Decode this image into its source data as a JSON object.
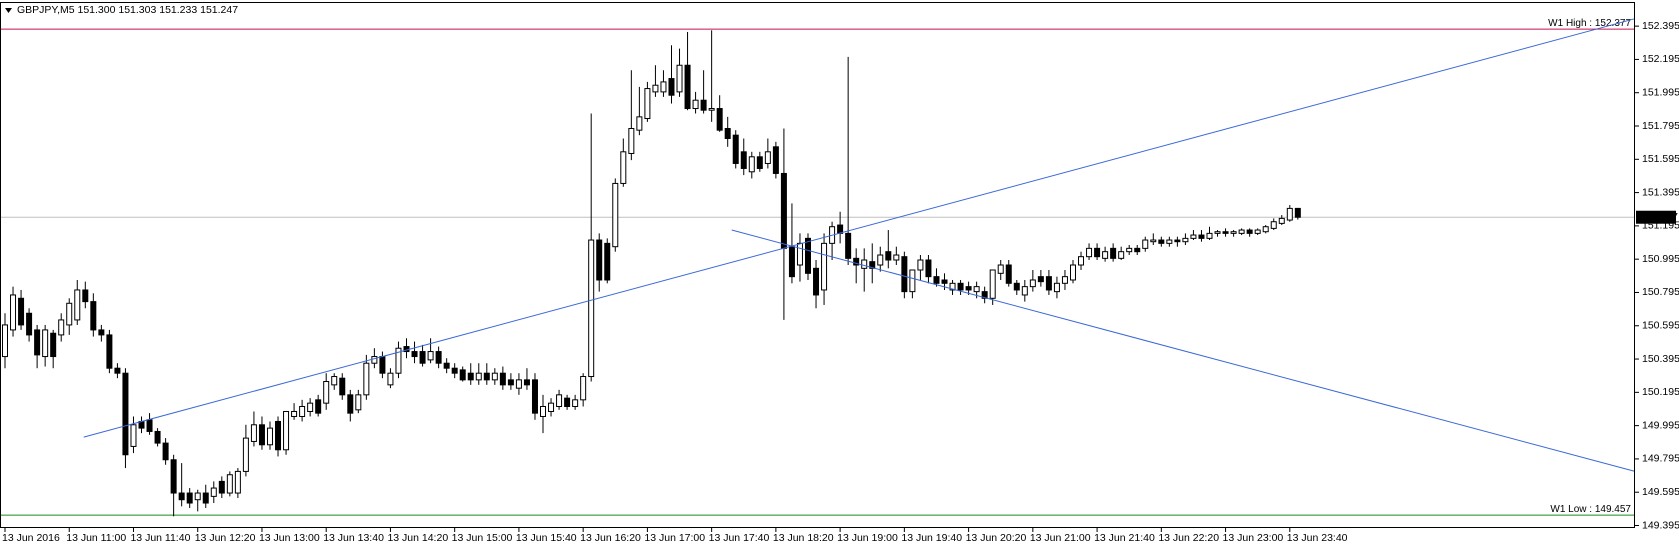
{
  "chart_data": {
    "type": "candlestick",
    "title": "GBPJPY,M5  151.300 151.303 151.233 151.247",
    "bull_color": "#ffffff",
    "bear_color": "#000000",
    "candles": [
      [
        150.41,
        150.67,
        150.34,
        150.6
      ],
      [
        150.57,
        150.83,
        150.53,
        150.78
      ],
      [
        150.76,
        150.81,
        150.57,
        150.6
      ],
      [
        150.67,
        150.7,
        150.5,
        150.54
      ],
      [
        150.57,
        150.6,
        150.34,
        150.42
      ],
      [
        150.41,
        150.6,
        150.35,
        150.57
      ],
      [
        150.55,
        150.57,
        150.34,
        150.41
      ],
      [
        150.54,
        150.67,
        150.5,
        150.63
      ],
      [
        150.6,
        150.76,
        150.54,
        150.73
      ],
      [
        150.63,
        150.87,
        150.6,
        150.81
      ],
      [
        150.81,
        150.86,
        150.7,
        150.74
      ],
      [
        150.74,
        150.79,
        150.53,
        150.57
      ],
      [
        150.57,
        150.6,
        150.5,
        150.54
      ],
      [
        150.54,
        150.57,
        150.31,
        150.34
      ],
      [
        150.34,
        150.37,
        150.28,
        150.31
      ],
      [
        150.31,
        150.34,
        149.74,
        149.82
      ],
      [
        149.87,
        150.05,
        149.83,
        150.0
      ],
      [
        150.02,
        150.05,
        149.95,
        149.98
      ],
      [
        150.03,
        150.07,
        149.94,
        149.96
      ],
      [
        149.96,
        149.98,
        149.87,
        149.89
      ],
      [
        149.89,
        149.92,
        149.76,
        149.79
      ],
      [
        149.79,
        149.82,
        149.45,
        149.59
      ],
      [
        149.59,
        149.77,
        149.51,
        149.55
      ],
      [
        149.59,
        149.62,
        149.5,
        149.53
      ],
      [
        149.55,
        149.61,
        149.48,
        149.59
      ],
      [
        149.59,
        149.64,
        149.5,
        149.53
      ],
      [
        149.57,
        149.66,
        149.53,
        149.62
      ],
      [
        149.66,
        149.69,
        149.56,
        149.59
      ],
      [
        149.59,
        149.72,
        149.57,
        149.7
      ],
      [
        149.59,
        149.74,
        149.56,
        149.72
      ],
      [
        149.72,
        150.0,
        149.69,
        149.92
      ],
      [
        149.9,
        150.08,
        149.87,
        150.0
      ],
      [
        150.0,
        150.05,
        149.85,
        149.88
      ],
      [
        149.88,
        150.02,
        149.85,
        149.98
      ],
      [
        150.02,
        150.05,
        149.81,
        149.85
      ],
      [
        149.85,
        150.08,
        149.82,
        150.08
      ],
      [
        150.05,
        150.13,
        150.03,
        150.08
      ],
      [
        150.05,
        150.15,
        150.02,
        150.11
      ],
      [
        150.08,
        150.16,
        150.05,
        150.13
      ],
      [
        150.15,
        150.18,
        150.05,
        150.07
      ],
      [
        150.13,
        150.31,
        150.09,
        150.26
      ],
      [
        150.24,
        150.31,
        150.21,
        150.29
      ],
      [
        150.28,
        150.31,
        150.15,
        150.18
      ],
      [
        150.18,
        150.21,
        150.02,
        150.07
      ],
      [
        150.09,
        150.21,
        150.07,
        150.18
      ],
      [
        150.18,
        150.42,
        150.15,
        150.37
      ],
      [
        150.37,
        150.46,
        150.34,
        150.41
      ],
      [
        150.41,
        150.44,
        150.28,
        150.31
      ],
      [
        150.24,
        150.34,
        150.22,
        150.31
      ],
      [
        150.31,
        150.5,
        150.28,
        150.46
      ],
      [
        150.47,
        150.52,
        150.4,
        150.44
      ],
      [
        150.44,
        150.5,
        150.37,
        150.41
      ],
      [
        150.44,
        150.48,
        150.35,
        150.37
      ],
      [
        150.39,
        150.52,
        150.37,
        150.44
      ],
      [
        150.44,
        150.47,
        150.34,
        150.37
      ],
      [
        150.37,
        150.4,
        150.31,
        150.34
      ],
      [
        150.34,
        150.37,
        150.28,
        150.31
      ],
      [
        150.33,
        150.35,
        150.26,
        150.27
      ],
      [
        150.31,
        150.37,
        150.24,
        150.27
      ],
      [
        150.27,
        150.37,
        150.24,
        150.31
      ],
      [
        150.31,
        150.37,
        150.24,
        150.27
      ],
      [
        150.27,
        150.34,
        150.24,
        150.31
      ],
      [
        150.31,
        150.35,
        150.21,
        150.24
      ],
      [
        150.27,
        150.31,
        150.21,
        150.24
      ],
      [
        150.22,
        150.31,
        150.18,
        150.27
      ],
      [
        150.27,
        150.34,
        150.21,
        150.24
      ],
      [
        150.27,
        150.31,
        150.03,
        150.07
      ],
      [
        150.05,
        150.18,
        149.95,
        150.11
      ],
      [
        150.08,
        150.16,
        150.05,
        150.13
      ],
      [
        150.11,
        150.21,
        150.09,
        150.18
      ],
      [
        150.16,
        150.18,
        150.09,
        150.11
      ],
      [
        150.11,
        150.18,
        150.09,
        150.15
      ],
      [
        150.15,
        150.31,
        150.11,
        150.29
      ],
      [
        150.29,
        151.87,
        150.26,
        151.11
      ],
      [
        151.11,
        151.15,
        150.8,
        150.87
      ],
      [
        151.09,
        151.12,
        150.85,
        150.87
      ],
      [
        151.07,
        151.48,
        151.04,
        151.45
      ],
      [
        151.45,
        151.72,
        151.43,
        151.64
      ],
      [
        151.63,
        152.13,
        151.59,
        151.78
      ],
      [
        151.77,
        152.03,
        151.74,
        151.85
      ],
      [
        151.84,
        152.06,
        151.82,
        152.02
      ],
      [
        152.0,
        152.16,
        151.97,
        152.04
      ],
      [
        152.0,
        152.13,
        151.97,
        152.06
      ],
      [
        152.08,
        152.28,
        151.93,
        151.98
      ],
      [
        152.0,
        152.26,
        151.97,
        152.16
      ],
      [
        152.16,
        152.36,
        151.89,
        151.9
      ],
      [
        151.9,
        152.0,
        151.87,
        151.95
      ],
      [
        151.95,
        152.13,
        151.87,
        151.89
      ],
      [
        151.89,
        152.37,
        151.82,
        151.9
      ],
      [
        151.9,
        151.98,
        151.76,
        151.77
      ],
      [
        151.78,
        151.85,
        151.67,
        151.72
      ],
      [
        151.74,
        151.77,
        151.54,
        151.57
      ],
      [
        151.64,
        151.72,
        151.5,
        151.54
      ],
      [
        151.52,
        151.64,
        151.48,
        151.61
      ],
      [
        151.61,
        151.64,
        151.52,
        151.54
      ],
      [
        151.57,
        151.72,
        151.54,
        151.64
      ],
      [
        151.67,
        151.7,
        151.48,
        151.51
      ],
      [
        151.51,
        151.78,
        150.63,
        151.06
      ],
      [
        151.07,
        151.33,
        150.85,
        150.89
      ],
      [
        150.96,
        151.15,
        150.86,
        151.09
      ],
      [
        151.12,
        151.15,
        150.87,
        150.91
      ],
      [
        150.94,
        150.99,
        150.7,
        150.78
      ],
      [
        150.81,
        151.15,
        150.72,
        151.09
      ],
      [
        151.09,
        151.22,
        150.99,
        151.19
      ],
      [
        151.2,
        151.28,
        151.09,
        151.15
      ],
      [
        151.15,
        152.21,
        150.96,
        151.0
      ],
      [
        151.0,
        151.06,
        150.85,
        150.96
      ],
      [
        150.94,
        151.06,
        150.8,
        150.99
      ],
      [
        150.98,
        151.09,
        150.85,
        150.94
      ],
      [
        150.96,
        151.07,
        150.92,
        151.02
      ],
      [
        151.04,
        151.17,
        150.94,
        150.99
      ],
      [
        150.99,
        151.07,
        150.96,
        151.02
      ],
      [
        151.01,
        151.04,
        150.76,
        150.8
      ],
      [
        150.8,
        150.93,
        150.76,
        150.93
      ],
      [
        150.93,
        151.02,
        150.87,
        150.99
      ],
      [
        150.99,
        151.02,
        150.85,
        150.89
      ],
      [
        150.89,
        150.94,
        150.83,
        150.85
      ],
      [
        150.87,
        150.91,
        150.81,
        150.85
      ],
      [
        150.81,
        150.87,
        150.78,
        150.85
      ],
      [
        150.85,
        150.87,
        150.78,
        150.81
      ],
      [
        150.83,
        150.86,
        150.78,
        150.81
      ],
      [
        150.8,
        150.86,
        150.76,
        150.83
      ],
      [
        150.8,
        150.83,
        150.73,
        150.76
      ],
      [
        150.76,
        150.93,
        150.72,
        150.93
      ],
      [
        150.91,
        150.99,
        150.87,
        150.96
      ],
      [
        150.96,
        150.99,
        150.83,
        150.85
      ],
      [
        150.85,
        150.87,
        150.78,
        150.81
      ],
      [
        150.78,
        150.87,
        150.74,
        150.83
      ],
      [
        150.83,
        150.93,
        150.8,
        150.87
      ],
      [
        150.89,
        150.93,
        150.83,
        150.86
      ],
      [
        150.89,
        150.93,
        150.78,
        150.81
      ],
      [
        150.8,
        150.89,
        150.76,
        150.85
      ],
      [
        150.85,
        150.93,
        150.81,
        150.89
      ],
      [
        150.87,
        150.99,
        150.85,
        150.96
      ],
      [
        150.96,
        151.04,
        150.93,
        151.01
      ],
      [
        151.01,
        151.09,
        150.99,
        151.06
      ],
      [
        151.06,
        151.09,
        150.99,
        151.01
      ],
      [
        151.0,
        151.07,
        150.98,
        151.04
      ],
      [
        151.06,
        151.09,
        150.98,
        151.0
      ],
      [
        151.0,
        151.07,
        150.99,
        151.04
      ],
      [
        151.04,
        151.08,
        151.02,
        151.06
      ],
      [
        151.06,
        151.08,
        151.02,
        151.04
      ],
      [
        151.06,
        151.13,
        151.04,
        151.11
      ],
      [
        151.1,
        151.15,
        151.08,
        151.11
      ],
      [
        151.11,
        151.13,
        151.07,
        151.09
      ],
      [
        151.09,
        151.13,
        151.07,
        151.11
      ],
      [
        151.11,
        151.13,
        151.07,
        151.1
      ],
      [
        151.1,
        151.15,
        151.08,
        151.12
      ],
      [
        151.12,
        151.17,
        151.11,
        151.14
      ],
      [
        151.14,
        151.17,
        151.1,
        151.12
      ],
      [
        151.12,
        151.19,
        151.11,
        151.15
      ],
      [
        151.15,
        151.17,
        151.13,
        151.16
      ],
      [
        151.16,
        151.18,
        151.13,
        151.15
      ],
      [
        151.15,
        151.17,
        151.13,
        151.16
      ],
      [
        151.15,
        151.18,
        151.14,
        151.17
      ],
      [
        151.17,
        151.18,
        151.13,
        151.15
      ],
      [
        151.15,
        151.18,
        151.14,
        151.17
      ],
      [
        151.16,
        151.2,
        151.15,
        151.19
      ],
      [
        151.18,
        151.24,
        151.17,
        151.22
      ],
      [
        151.21,
        151.26,
        151.2,
        151.24
      ],
      [
        151.23,
        151.32,
        151.22,
        151.3
      ],
      [
        151.3,
        151.303,
        151.233,
        151.247
      ]
    ],
    "xticks": [
      {
        "value": 0,
        "label": "13 Jun 2016"
      },
      {
        "value": 8,
        "label": "13 Jun 11:00"
      },
      {
        "value": 16,
        "label": "13 Jun 11:40"
      },
      {
        "value": 24,
        "label": "13 Jun 12:20"
      },
      {
        "value": 32,
        "label": "13 Jun 13:00"
      },
      {
        "value": 40,
        "label": "13 Jun 13:40"
      },
      {
        "value": 48,
        "label": "13 Jun 14:20"
      },
      {
        "value": 56,
        "label": "13 Jun 15:00"
      },
      {
        "value": 64,
        "label": "13 Jun 15:40"
      },
      {
        "value": 72,
        "label": "13 Jun 16:20"
      },
      {
        "value": 80,
        "label": "13 Jun 17:00"
      },
      {
        "value": 88,
        "label": "13 Jun 17:40"
      },
      {
        "value": 96,
        "label": "13 Jun 18:20"
      },
      {
        "value": 104,
        "label": "13 Jun 19:00"
      },
      {
        "value": 112,
        "label": "13 Jun 19:40"
      },
      {
        "value": 120,
        "label": "13 Jun 20:20"
      },
      {
        "value": 128,
        "label": "13 Jun 21:00"
      },
      {
        "value": 136,
        "label": "13 Jun 21:40"
      },
      {
        "value": 144,
        "label": "13 Jun 22:20"
      },
      {
        "value": 152,
        "label": "13 Jun 23:00"
      },
      {
        "value": 160,
        "label": "13 Jun 23:40"
      }
    ],
    "ylim": [
      149.38,
      152.54
    ],
    "yticks": [
      152.395,
      152.195,
      151.995,
      151.795,
      151.595,
      151.395,
      151.195,
      150.995,
      150.795,
      150.595,
      150.395,
      150.195,
      149.995,
      149.795,
      149.595,
      149.395
    ],
    "levels": [
      {
        "value": 152.377,
        "label": "W1 High : 152.377",
        "color": "#c8154a"
      },
      {
        "value": 149.457,
        "label": "W1 Low : 149.457",
        "color": "#1a8a1a"
      }
    ],
    "current_price": 151.247,
    "trendlines": [
      {
        "color": "#3a68d8",
        "points": [
          [
            9.8,
            149.926
          ],
          [
            203,
            152.44
          ]
        ]
      },
      {
        "color": "#3a68d8",
        "points": [
          [
            90.5,
            151.17
          ],
          [
            203,
            149.72
          ]
        ]
      }
    ]
  }
}
